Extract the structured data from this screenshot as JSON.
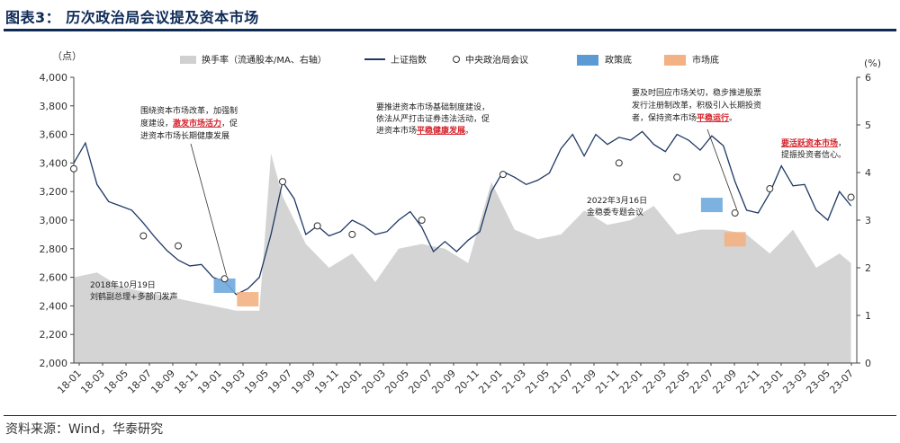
{
  "header": {
    "title": "图表3：  历次政治局会议提及资本市场"
  },
  "footer": {
    "source": "资料来源：Wind，华泰研究"
  },
  "chart_data": {
    "type": "line",
    "y_left_unit": "（点）",
    "y_right_unit": "(%)",
    "ylim_left": [
      2000,
      4000
    ],
    "ylim_right": [
      0,
      6
    ],
    "yticks_left": [
      "2,000",
      "2,200",
      "2,400",
      "2,600",
      "2,800",
      "3,000",
      "3,200",
      "3,400",
      "3,600",
      "3,800",
      "4,000"
    ],
    "yticks_right": [
      "0",
      "1",
      "2",
      "3",
      "4",
      "5",
      "6"
    ],
    "x_ticks": [
      "18-01",
      "18-03",
      "18-05",
      "18-07",
      "18-09",
      "18-11",
      "19-01",
      "19-03",
      "19-05",
      "19-07",
      "19-09",
      "19-11",
      "20-01",
      "20-03",
      "20-05",
      "20-07",
      "20-09",
      "20-11",
      "21-01",
      "21-03",
      "21-05",
      "21-07",
      "21-09",
      "21-11",
      "22-01",
      "22-03",
      "22-05",
      "22-07",
      "22-09",
      "22-11",
      "23-01",
      "23-03",
      "23-05",
      "23-07"
    ],
    "legend": [
      {
        "label": "换手率（流通股本/MA、右轴）",
        "kind": "area",
        "color": "#d0d0d0"
      },
      {
        "label": "上证指数",
        "kind": "line",
        "color": "#1f3864"
      },
      {
        "label": "中央政治局会议",
        "kind": "marker",
        "color": "#ffffff"
      },
      {
        "label": "政策底",
        "kind": "box",
        "color": "#5b9bd5"
      },
      {
        "label": "市场底",
        "kind": "box",
        "color": "#f4b183"
      }
    ],
    "series": [
      {
        "name": "上证指数",
        "axis": "left",
        "x": [
          0,
          1,
          2,
          3,
          4,
          5,
          6,
          7,
          8,
          9,
          10,
          11,
          12,
          13,
          14,
          15,
          16,
          17,
          18,
          19,
          20,
          21,
          22,
          23,
          24,
          25,
          26,
          27,
          28,
          29,
          30,
          31,
          32,
          33,
          34,
          35,
          36,
          37,
          38,
          39,
          40,
          41,
          42,
          43,
          44,
          45,
          46,
          47,
          48,
          49,
          50,
          51,
          52,
          53,
          54,
          55,
          56,
          57,
          58,
          59,
          60,
          61,
          62,
          63,
          64,
          65,
          66,
          67
        ],
        "values": [
          3400,
          3540,
          3250,
          3130,
          3100,
          3070,
          2980,
          2880,
          2790,
          2720,
          2680,
          2690,
          2600,
          2570,
          2480,
          2520,
          2600,
          2900,
          3270,
          3150,
          2900,
          2960,
          2890,
          2920,
          3000,
          2960,
          2900,
          2920,
          3000,
          3060,
          2950,
          2780,
          2850,
          2780,
          2860,
          2920,
          3200,
          3340,
          3300,
          3250,
          3280,
          3330,
          3500,
          3600,
          3450,
          3600,
          3530,
          3580,
          3560,
          3620,
          3530,
          3480,
          3600,
          3560,
          3490,
          3590,
          3520,
          3270,
          3070,
          3050,
          3190,
          3380,
          3240,
          3250,
          3070,
          3000,
          3200,
          3100
        ],
        "note": "approximate half-month sampled series; chart x spans 18-01 to 23-08"
      },
      {
        "name": "换手率（流通股本/MA、右轴）",
        "axis": "right",
        "x": [
          0,
          2,
          4,
          6,
          8,
          10,
          12,
          14,
          16,
          17,
          18,
          20,
          22,
          24,
          26,
          28,
          30,
          32,
          34,
          36,
          38,
          40,
          42,
          44,
          46,
          48,
          50,
          52,
          54,
          56,
          58,
          60,
          62,
          64,
          66,
          67
        ],
        "values": [
          1.8,
          1.9,
          1.6,
          1.5,
          1.4,
          1.3,
          1.2,
          1.1,
          1.1,
          4.4,
          3.5,
          2.5,
          2.0,
          2.3,
          1.7,
          2.4,
          2.5,
          2.4,
          2.1,
          3.8,
          2.8,
          2.6,
          2.7,
          3.2,
          2.9,
          3.0,
          3.3,
          2.7,
          2.8,
          2.8,
          2.7,
          2.3,
          2.8,
          2.0,
          2.3,
          2.1
        ]
      }
    ],
    "meeting_markers": [
      {
        "x": 0,
        "value": 3360
      },
      {
        "x": 6,
        "value": 2890
      },
      {
        "x": 9,
        "value": 2820
      },
      {
        "x": 13,
        "value": 2590
      },
      {
        "x": 18,
        "value": 3270
      },
      {
        "x": 21,
        "value": 2960
      },
      {
        "x": 24,
        "value": 2900
      },
      {
        "x": 30,
        "value": 3000
      },
      {
        "x": 37,
        "value": 3320
      },
      {
        "x": 47,
        "value": 3400
      },
      {
        "x": 52,
        "value": 3300
      },
      {
        "x": 57,
        "value": 3050
      },
      {
        "x": 60,
        "value": 3220
      },
      {
        "x": 67,
        "value": 3160
      }
    ],
    "policy_bottoms": [
      {
        "x": 13,
        "value": 2535
      },
      {
        "x": 55,
        "value": 3100
      }
    ],
    "market_bottoms": [
      {
        "x": 15,
        "value": 2440
      },
      {
        "x": 57,
        "value": 2860
      }
    ],
    "annotations": [
      {
        "id": "ann1",
        "lines": [
          "围绕资本市场改革，加强制",
          "度建设，{激发市场活力}，促",
          "进资本市场长期健康发展"
        ]
      },
      {
        "id": "ann2",
        "lines": [
          "要推进资本市场基础制度建设，",
          "依法从严打击证券违法活动，促",
          "进资本市场{平稳健康发展}。"
        ]
      },
      {
        "id": "ann3",
        "lines": [
          "要及时回应市场关切，稳步推进股票",
          "发行注册制改革，积极引入长期投资",
          "者，保持资本市场{平稳运行}。"
        ]
      },
      {
        "id": "ann4",
        "lines": [
          "{要活跃资本市场}，",
          "提振投资者信心。"
        ]
      },
      {
        "id": "ann5",
        "lines": [
          "2018年10月19日",
          "刘鹤副总理+多部门发声"
        ]
      },
      {
        "id": "ann6",
        "lines": [
          "2022年3月16日",
          "金稳委专题会议"
        ]
      }
    ]
  }
}
